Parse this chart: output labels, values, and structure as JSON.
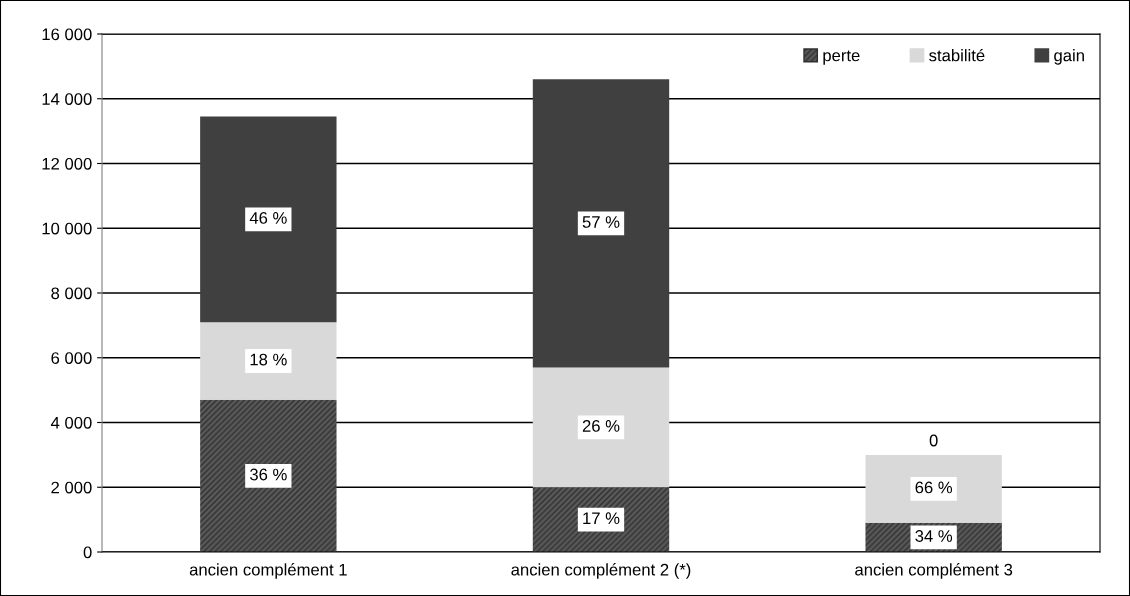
{
  "chart_data": {
    "type": "bar",
    "stacked": true,
    "categories": [
      "ancien complément 1",
      "ancien complément 2 (*)",
      "ancien complément 3"
    ],
    "series": [
      {
        "name": "perte",
        "color": "#595959",
        "values": [
          4700,
          2000,
          900
        ]
      },
      {
        "name": "stabilité",
        "color": "#d9d9d9",
        "values": [
          2400,
          3700,
          2100
        ]
      },
      {
        "name": "gain",
        "color": "#404040",
        "values": [
          6350,
          8900,
          0
        ],
        "value_labels": [
          null,
          null,
          "0"
        ]
      }
    ],
    "annotations": [
      "36 %",
      "17 %",
      "34 %",
      "18 %",
      "26 %",
      "66 %",
      "46 %",
      "57 %"
    ],
    "ylim": [
      0,
      16000
    ],
    "yticks": [
      {
        "value": 0,
        "label": "0"
      },
      {
        "value": 2000,
        "label": "2 000"
      },
      {
        "value": 4000,
        "label": "4 000"
      },
      {
        "value": 6000,
        "label": "6 000"
      },
      {
        "value": 8000,
        "label": "8 000"
      },
      {
        "value": 10000,
        "label": "10 000"
      },
      {
        "value": 12000,
        "label": "12 000"
      },
      {
        "value": 14000,
        "label": "14 000"
      },
      {
        "value": 16000,
        "label": "16 000"
      }
    ],
    "grid": "y",
    "legend": "top right"
  }
}
